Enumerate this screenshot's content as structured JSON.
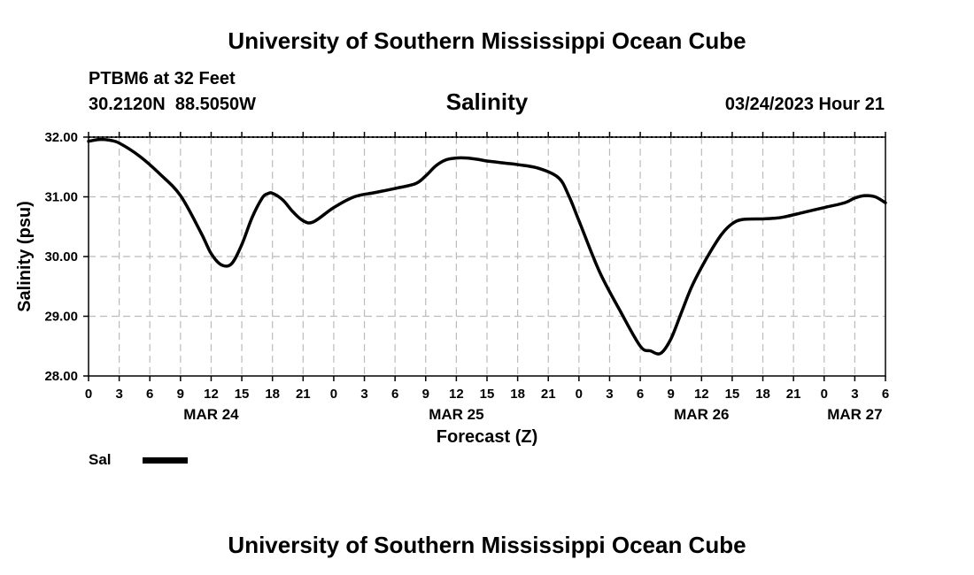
{
  "header": {
    "title_top": "University of Southern Mississippi Ocean Cube",
    "station": "PTBM6 at 32 Feet",
    "coords": "30.2120N  88.5050W",
    "variable": "Salinity",
    "datetime": "03/24/2023 Hour 21",
    "title_bottom": "University of Southern Mississippi Ocean Cube"
  },
  "chart_data": {
    "type": "line",
    "ylabel": "Salinity (psu)",
    "xlabel": "Forecast (Z)",
    "ylim": [
      28.0,
      32.0
    ],
    "xlim": [
      0,
      78
    ],
    "grid": true,
    "y_ticks": [
      "28.00",
      "29.00",
      "30.00",
      "31.00",
      "32.00"
    ],
    "x_tick_labels": [
      "0",
      "3",
      "6",
      "9",
      "12",
      "15",
      "18",
      "21",
      "0",
      "3",
      "6",
      "9",
      "12",
      "15",
      "18",
      "21",
      "0",
      "3",
      "6",
      "9",
      "12",
      "15",
      "18",
      "21",
      "0",
      "3",
      "6"
    ],
    "day_labels": [
      {
        "label": "MAR 24",
        "hour": 12
      },
      {
        "label": "MAR 25",
        "hour": 36
      },
      {
        "label": "MAR 26",
        "hour": 60
      },
      {
        "label": "MAR 27",
        "hour": 75
      }
    ],
    "legend": {
      "label": "Sal",
      "placement": "bottom-left"
    },
    "series": [
      {
        "name": "Sal",
        "color": "#000000",
        "x": [
          0,
          1,
          2,
          3,
          5,
          7,
          9,
          11,
          12,
          13,
          14,
          15,
          16,
          17,
          17.5,
          18,
          19,
          20,
          21,
          22,
          24,
          26,
          28,
          30,
          32,
          33,
          34,
          35,
          36,
          37,
          38,
          39,
          40,
          41,
          42,
          44,
          46,
          47,
          48,
          50,
          52,
          54,
          55,
          56,
          57,
          58,
          59,
          60,
          61,
          62,
          63,
          64,
          66,
          67,
          68,
          70,
          72,
          74,
          75,
          76,
          77,
          78
        ],
        "y": [
          31.93,
          31.96,
          31.95,
          31.9,
          31.68,
          31.38,
          31.02,
          30.4,
          30.05,
          29.86,
          29.88,
          30.2,
          30.65,
          30.98,
          31.05,
          31.06,
          30.95,
          30.75,
          30.6,
          30.58,
          30.82,
          31.0,
          31.07,
          31.14,
          31.22,
          31.35,
          31.52,
          31.62,
          31.65,
          31.65,
          31.63,
          31.6,
          31.58,
          31.56,
          31.54,
          31.48,
          31.32,
          31.02,
          30.6,
          29.75,
          29.1,
          28.5,
          28.42,
          28.38,
          28.62,
          29.05,
          29.48,
          29.82,
          30.12,
          30.38,
          30.55,
          30.62,
          30.63,
          30.64,
          30.66,
          30.74,
          30.82,
          30.9,
          30.98,
          31.02,
          31.0,
          30.9
        ]
      }
    ]
  }
}
